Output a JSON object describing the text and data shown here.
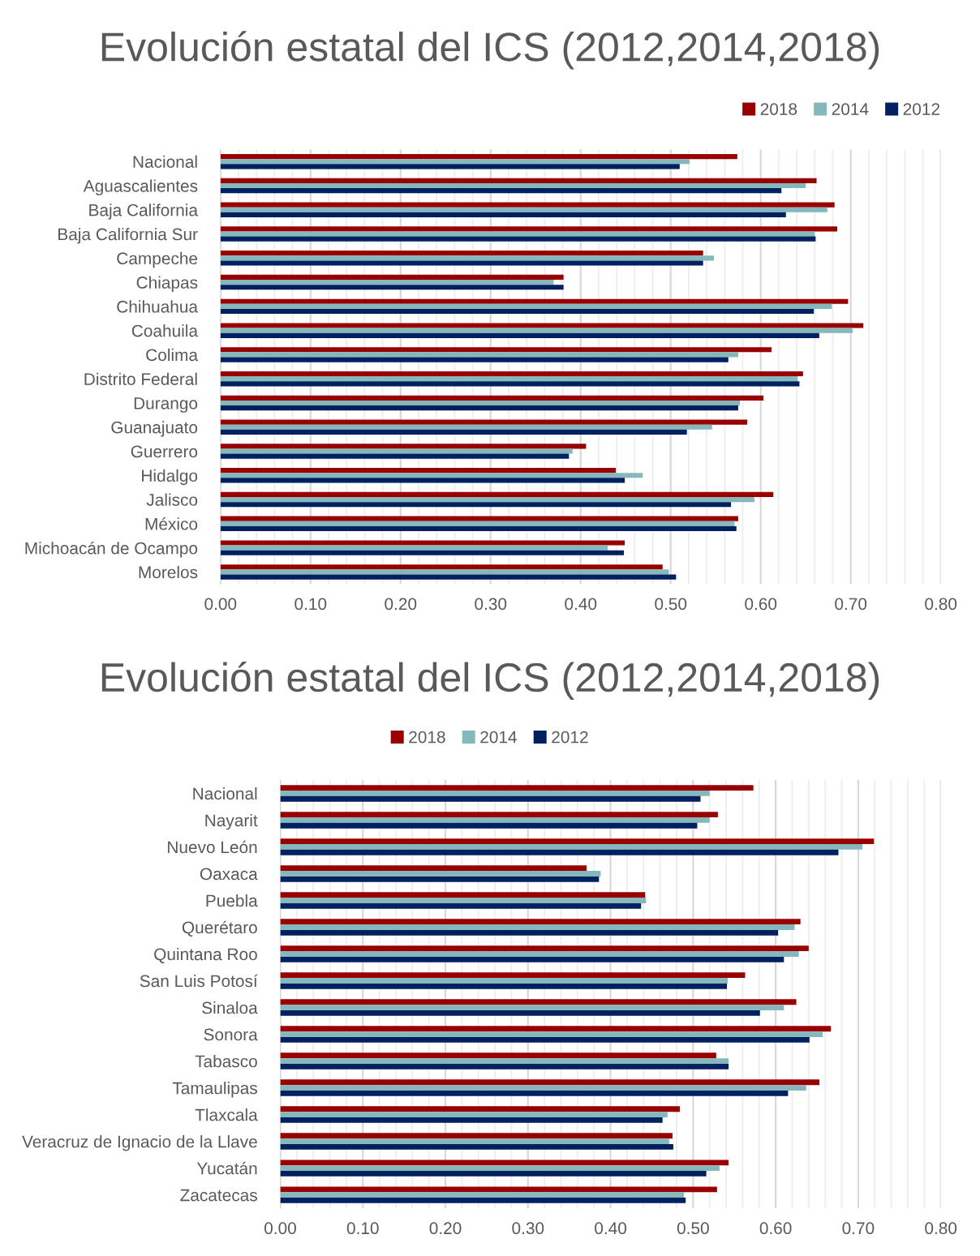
{
  "chart_data": [
    {
      "type": "bar",
      "orientation": "horizontal",
      "title": "Evolución estatal del ICS (2012,2014,2018)",
      "categories": [
        "Nacional",
        "Aguascalientes",
        "Baja California",
        "Baja California Sur",
        "Campeche",
        "Chiapas",
        "Chihuahua",
        "Coahuila",
        "Colima",
        "Distrito Federal",
        "Durango",
        "Guanajuato",
        "Guerrero",
        "Hidalgo",
        "Jalisco",
        "México",
        "Michoacán de Ocampo",
        "Morelos"
      ],
      "series": [
        {
          "name": "2018",
          "color": "#990000",
          "values": [
            0.574,
            0.662,
            0.682,
            0.685,
            0.536,
            0.381,
            0.697,
            0.714,
            0.612,
            0.647,
            0.603,
            0.585,
            0.406,
            0.439,
            0.614,
            0.575,
            0.449,
            0.491
          ]
        },
        {
          "name": "2014",
          "color": "#84b8bc",
          "values": [
            0.521,
            0.65,
            0.674,
            0.66,
            0.548,
            0.37,
            0.679,
            0.702,
            0.575,
            0.641,
            0.577,
            0.546,
            0.391,
            0.469,
            0.593,
            0.571,
            0.43,
            0.498
          ]
        },
        {
          "name": "2012",
          "color": "#002060",
          "values": [
            0.51,
            0.623,
            0.628,
            0.661,
            0.536,
            0.381,
            0.659,
            0.665,
            0.564,
            0.643,
            0.575,
            0.518,
            0.387,
            0.449,
            0.567,
            0.573,
            0.448,
            0.506
          ]
        }
      ],
      "xlim": [
        0,
        0.8
      ],
      "xticks": [
        {
          "value": 0,
          "label": "0.00"
        },
        {
          "value": 0.02,
          "label": null
        },
        {
          "value": 0.04,
          "label": null
        },
        {
          "value": 0.06,
          "label": null
        },
        {
          "value": 0.08,
          "label": null
        },
        {
          "value": 0.1,
          "label": "0.10"
        },
        {
          "value": 0.12,
          "label": null
        },
        {
          "value": 0.14,
          "label": null
        },
        {
          "value": 0.16,
          "label": null
        },
        {
          "value": 0.18,
          "label": null
        },
        {
          "value": 0.2,
          "label": "0.20"
        },
        {
          "value": 0.22,
          "label": null
        },
        {
          "value": 0.24,
          "label": null
        },
        {
          "value": 0.26,
          "label": null
        },
        {
          "value": 0.28,
          "label": null
        },
        {
          "value": 0.3,
          "label": "0.30"
        },
        {
          "value": 0.32,
          "label": null
        },
        {
          "value": 0.34,
          "label": null
        },
        {
          "value": 0.36,
          "label": null
        },
        {
          "value": 0.38,
          "label": null
        },
        {
          "value": 0.4,
          "label": "0.40"
        },
        {
          "value": 0.42,
          "label": null
        },
        {
          "value": 0.44,
          "label": null
        },
        {
          "value": 0.46,
          "label": null
        },
        {
          "value": 0.48,
          "label": null
        },
        {
          "value": 0.5,
          "label": "0.50"
        },
        {
          "value": 0.52,
          "label": null
        },
        {
          "value": 0.54,
          "label": null
        },
        {
          "value": 0.56,
          "label": null
        },
        {
          "value": 0.58,
          "label": null
        },
        {
          "value": 0.6,
          "label": "0.60"
        },
        {
          "value": 0.62,
          "label": null
        },
        {
          "value": 0.64,
          "label": null
        },
        {
          "value": 0.66,
          "label": null
        },
        {
          "value": 0.68,
          "label": null
        },
        {
          "value": 0.7,
          "label": "0.70"
        },
        {
          "value": 0.72,
          "label": null
        },
        {
          "value": 0.74,
          "label": null
        },
        {
          "value": 0.76,
          "label": null
        },
        {
          "value": 0.78,
          "label": null
        },
        {
          "value": 0.8,
          "label": "0.80"
        }
      ],
      "grid": "x",
      "legend": "top right"
    },
    {
      "type": "bar",
      "orientation": "horizontal",
      "title": "Evolución estatal del ICS (2012,2014,2018)",
      "categories": [
        "Nacional",
        "Nayarit",
        "Nuevo León",
        "Oaxaca",
        "Puebla",
        "Querétaro",
        "Quintana Roo",
        "San Luis Potosí",
        "Sinaloa",
        "Sonora",
        "Tabasco",
        "Tamaulipas",
        "Tlaxcala",
        "Veracruz de Ignacio de la Llave",
        "Yucatán",
        "Zacatecas"
      ],
      "series": [
        {
          "name": "2018",
          "color": "#990000",
          "values": [
            0.573,
            0.53,
            0.719,
            0.371,
            0.442,
            0.63,
            0.64,
            0.563,
            0.625,
            0.667,
            0.528,
            0.653,
            0.484,
            0.475,
            0.543,
            0.529
          ]
        },
        {
          "name": "2014",
          "color": "#84b8bc",
          "values": [
            0.52,
            0.52,
            0.705,
            0.388,
            0.443,
            0.623,
            0.628,
            0.542,
            0.61,
            0.657,
            0.543,
            0.637,
            0.469,
            0.471,
            0.532,
            0.489
          ]
        },
        {
          "name": "2012",
          "color": "#002060",
          "values": [
            0.509,
            0.505,
            0.676,
            0.386,
            0.437,
            0.603,
            0.61,
            0.541,
            0.581,
            0.641,
            0.543,
            0.615,
            0.463,
            0.476,
            0.516,
            0.491
          ]
        }
      ],
      "xlim": [
        0,
        0.8
      ],
      "xticks": [
        {
          "value": 0,
          "label": "0.00"
        },
        {
          "value": 0.02,
          "label": null
        },
        {
          "value": 0.04,
          "label": null
        },
        {
          "value": 0.06,
          "label": null
        },
        {
          "value": 0.08,
          "label": null
        },
        {
          "value": 0.1,
          "label": "0.10"
        },
        {
          "value": 0.12,
          "label": null
        },
        {
          "value": 0.14,
          "label": null
        },
        {
          "value": 0.16,
          "label": null
        },
        {
          "value": 0.18,
          "label": null
        },
        {
          "value": 0.2,
          "label": "0.20"
        },
        {
          "value": 0.22,
          "label": null
        },
        {
          "value": 0.24,
          "label": null
        },
        {
          "value": 0.26,
          "label": null
        },
        {
          "value": 0.28,
          "label": null
        },
        {
          "value": 0.3,
          "label": "0.30"
        },
        {
          "value": 0.32,
          "label": null
        },
        {
          "value": 0.34,
          "label": null
        },
        {
          "value": 0.36,
          "label": null
        },
        {
          "value": 0.38,
          "label": null
        },
        {
          "value": 0.4,
          "label": "0.40"
        },
        {
          "value": 0.42,
          "label": null
        },
        {
          "value": 0.44,
          "label": null
        },
        {
          "value": 0.46,
          "label": null
        },
        {
          "value": 0.48,
          "label": null
        },
        {
          "value": 0.5,
          "label": "0.50"
        },
        {
          "value": 0.52,
          "label": null
        },
        {
          "value": 0.54,
          "label": null
        },
        {
          "value": 0.56,
          "label": null
        },
        {
          "value": 0.58,
          "label": null
        },
        {
          "value": 0.6,
          "label": "0.60"
        },
        {
          "value": 0.62,
          "label": null
        },
        {
          "value": 0.64,
          "label": null
        },
        {
          "value": 0.66,
          "label": null
        },
        {
          "value": 0.68,
          "label": null
        },
        {
          "value": 0.7,
          "label": "0.70"
        },
        {
          "value": 0.72,
          "label": null
        },
        {
          "value": 0.74,
          "label": null
        },
        {
          "value": 0.76,
          "label": null
        },
        {
          "value": 0.78,
          "label": null
        },
        {
          "value": 0.8,
          "label": "0.80"
        }
      ],
      "grid": "x",
      "legend": "top"
    }
  ]
}
